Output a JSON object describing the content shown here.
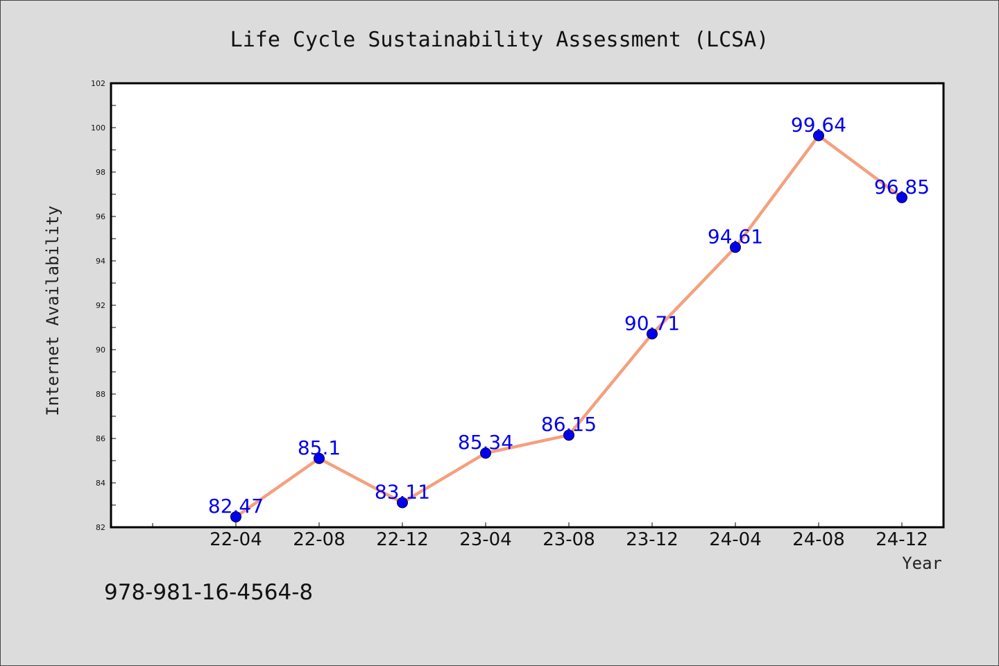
{
  "chart_data": {
    "type": "line",
    "title": "Life Cycle Sustainability Assessment (LCSA)",
    "xlabel": "Year",
    "ylabel": "Internet Availability",
    "categories": [
      "22-04",
      "22-08",
      "22-12",
      "23-04",
      "23-08",
      "23-12",
      "24-04",
      "24-08",
      "24-12"
    ],
    "values": [
      82.47,
      85.1,
      83.11,
      85.34,
      86.15,
      90.71,
      94.61,
      99.64,
      96.85
    ],
    "data_labels": [
      "82.47",
      "85.1",
      "83.11",
      "85.34",
      "86.15",
      "90.71",
      "94.61",
      "99.64",
      "96.85"
    ],
    "ylim": [
      82,
      102
    ],
    "yticks": [
      82,
      84,
      86,
      88,
      90,
      92,
      94,
      96,
      98,
      100,
      102
    ],
    "grid": false,
    "legend": "none",
    "colors": {
      "line": "#f4a07e",
      "marker": "#0000ee",
      "label": "#0000ee",
      "background": "#dcdcdc",
      "plot_background": "#ffffff"
    }
  },
  "footer_text": "978-981-16-4564-8"
}
